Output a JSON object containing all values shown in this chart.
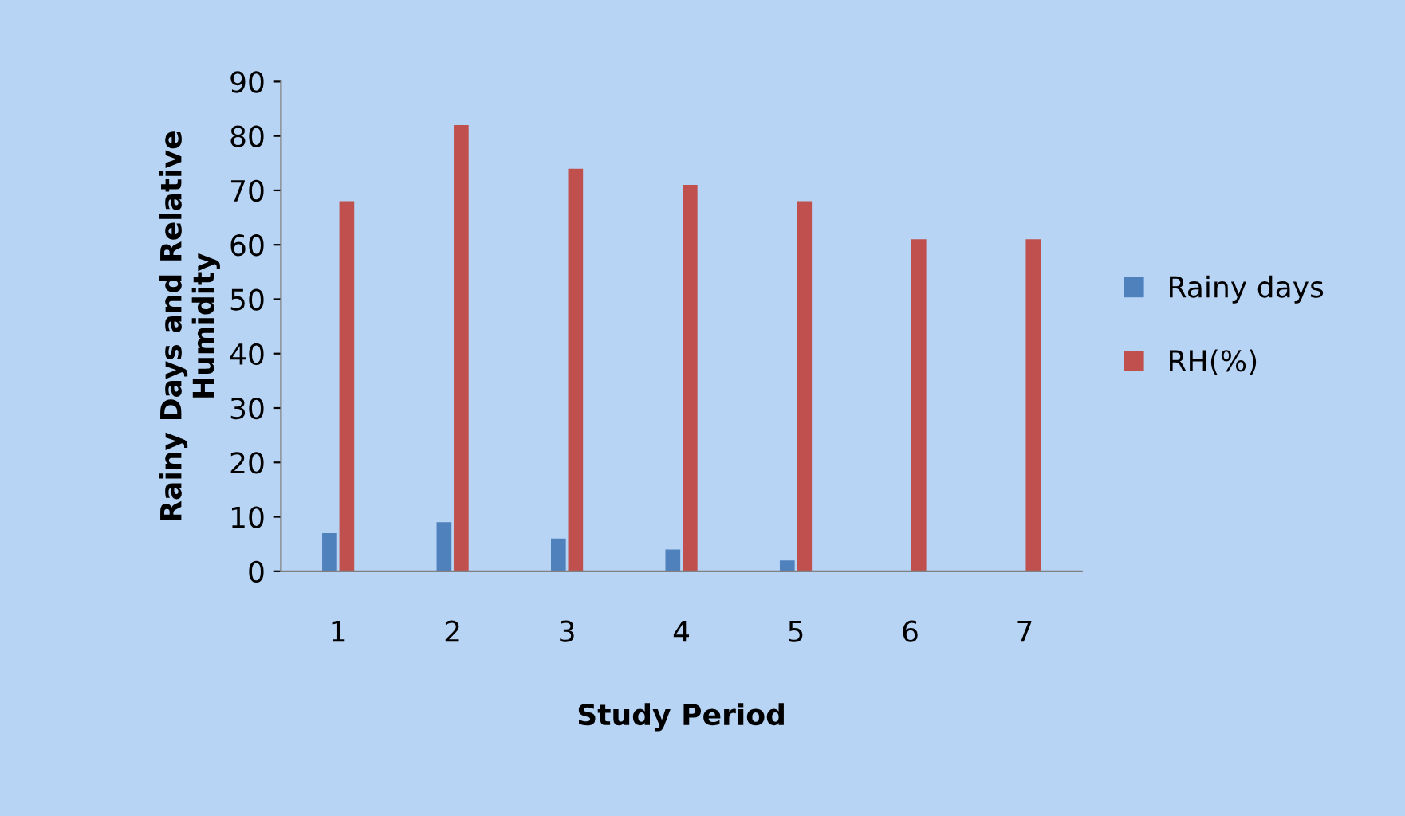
{
  "chart_data": {
    "type": "bar",
    "xlabel": "Study Period",
    "ylabel": "Rainy Days and Relative\nHumidity",
    "categories": [
      "1",
      "2",
      "3",
      "4",
      "5",
      "6",
      "7"
    ],
    "series": [
      {
        "name": "Rainy days",
        "color": "#4f81bd",
        "values": [
          7,
          9,
          6,
          4,
          2,
          0,
          0
        ]
      },
      {
        "name": "RH(%)",
        "color": "#c0504d",
        "values": [
          68,
          82,
          74,
          71,
          68,
          61,
          61
        ]
      }
    ],
    "ylim": [
      0,
      90
    ],
    "yticks": [
      0,
      10,
      20,
      30,
      40,
      50,
      60,
      70,
      80,
      90
    ],
    "grid": false,
    "legend": "right"
  }
}
